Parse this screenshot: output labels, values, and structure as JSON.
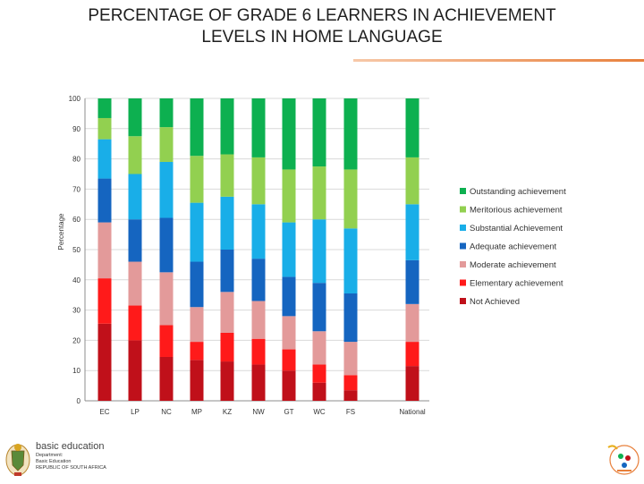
{
  "title_line1": "PERCENTAGE OF GRADE 6 LEARNERS IN ACHIEVEMENT",
  "title_line2": "LEVELS IN HOME LANGUAGE",
  "footer": {
    "brand": "basic education",
    "dept_line1": "Department:",
    "dept_line2": "Basic Education",
    "dept_line3": "REPUBLIC OF SOUTH AFRICA"
  },
  "chart_data": {
    "type": "bar",
    "stacked": true,
    "ylabel": "Percentage",
    "xlabel": "",
    "ylim": [
      0,
      100
    ],
    "yticks": [
      0,
      10,
      20,
      30,
      40,
      50,
      60,
      70,
      80,
      90,
      100
    ],
    "grid": true,
    "legend_position": "right",
    "categories": [
      "EC",
      "LP",
      "NC",
      "MP",
      "KZ",
      "NW",
      "GT",
      "WC",
      "FS",
      "National"
    ],
    "series": [
      {
        "name": "Not Achieved",
        "color": "#c0101a",
        "values": [
          25.5,
          20.0,
          14.5,
          13.5,
          13.0,
          12.0,
          10.0,
          6.0,
          3.5,
          11.5
        ]
      },
      {
        "name": "Elementary achievement",
        "color": "#ff1a1a",
        "values": [
          15.0,
          11.5,
          10.5,
          6.0,
          9.5,
          8.5,
          7.0,
          6.0,
          5.0,
          8.0
        ]
      },
      {
        "name": "Moderate achievement",
        "color": "#e39a9a",
        "values": [
          18.5,
          14.5,
          17.5,
          11.5,
          13.5,
          12.5,
          11.0,
          11.0,
          11.0,
          12.5
        ]
      },
      {
        "name": "Adequate achievement",
        "color": "#1565c0",
        "values": [
          14.5,
          14.0,
          18.0,
          15.0,
          14.0,
          14.0,
          13.0,
          16.0,
          16.0,
          14.5
        ]
      },
      {
        "name": "Substantial Achievement",
        "color": "#19aee8",
        "values": [
          13.0,
          15.0,
          18.5,
          19.5,
          17.5,
          18.0,
          18.0,
          21.0,
          21.5,
          18.5
        ]
      },
      {
        "name": "Meritorious achievement",
        "color": "#92d050",
        "values": [
          7.0,
          12.5,
          11.5,
          15.5,
          14.0,
          15.5,
          17.5,
          17.5,
          19.5,
          15.5
        ]
      },
      {
        "name": "Outstanding achievement",
        "color": "#0db050",
        "values": [
          6.5,
          12.5,
          9.5,
          19.0,
          18.5,
          19.5,
          23.5,
          22.5,
          23.5,
          19.5
        ]
      }
    ]
  }
}
